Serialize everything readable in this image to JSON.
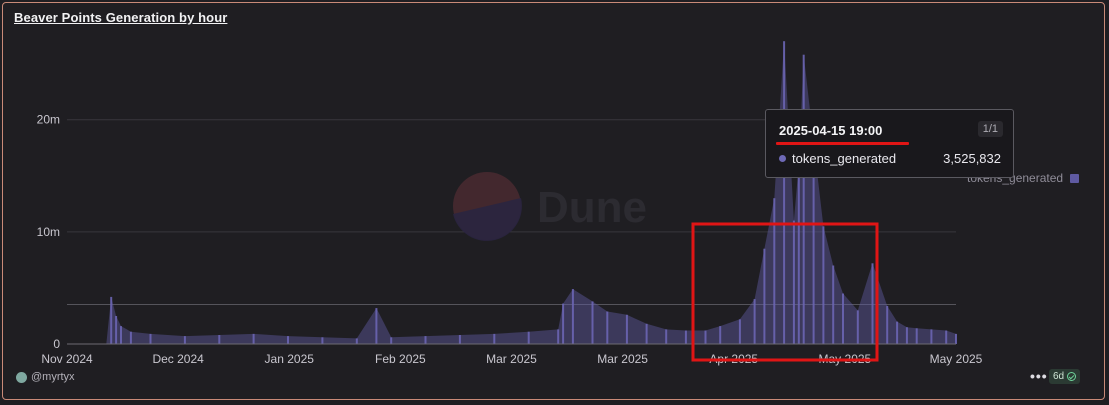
{
  "panel": {
    "title": "Beaver Points Generation by hour",
    "author": "@myrtyx",
    "more_label": "•••",
    "age_label": "6d",
    "watermark": "Dune"
  },
  "tooltip": {
    "date": "2025-04-15 19:00",
    "page": "1/1",
    "series": "tokens_generated",
    "value": "3,525,832"
  },
  "legend": {
    "label": "tokens_generated"
  },
  "colors": {
    "series": "#5f5aa2",
    "highlight_box": "#e01515",
    "background": "#1f1e22"
  },
  "chart_data": {
    "type": "bar",
    "title": "Beaver Points Generation by hour",
    "series_name": "tokens_generated",
    "ylim": [
      0,
      28000000
    ],
    "yticks": [
      {
        "value": 0,
        "label": "0"
      },
      {
        "value": 10000000,
        "label": "10m"
      },
      {
        "value": 20000000,
        "label": "20m"
      }
    ],
    "xticks": [
      "Nov 2024",
      "Dec 2024",
      "Jan 2025",
      "Feb 2025",
      "Mar 2025",
      "Mar 2025",
      "Apr 2025",
      "May 2025",
      "May 2025"
    ],
    "x": [
      "2024-11-20",
      "2024-11-25",
      "2024-11-28",
      "2024-11-29",
      "2024-11-30",
      "2024-12-01",
      "2024-12-03",
      "2024-12-07",
      "2024-12-14",
      "2024-12-21",
      "2024-12-28",
      "2025-01-04",
      "2025-01-11",
      "2025-01-18",
      "2025-01-22",
      "2025-01-25",
      "2025-02-01",
      "2025-02-08",
      "2025-02-15",
      "2025-02-22",
      "2025-02-28",
      "2025-03-01",
      "2025-03-03",
      "2025-03-07",
      "2025-03-10",
      "2025-03-14",
      "2025-03-18",
      "2025-03-22",
      "2025-03-26",
      "2025-03-30",
      "2025-04-02",
      "2025-04-06",
      "2025-04-09",
      "2025-04-11",
      "2025-04-13",
      "2025-04-15",
      "2025-04-17",
      "2025-04-18",
      "2025-04-19",
      "2025-04-21",
      "2025-04-23",
      "2025-04-25",
      "2025-04-27",
      "2025-04-30",
      "2025-05-03",
      "2025-05-06",
      "2025-05-08",
      "2025-05-10",
      "2025-05-12",
      "2025-05-15",
      "2025-05-18",
      "2025-05-20"
    ],
    "values": [
      0,
      0,
      0,
      4200000,
      2500000,
      1600000,
      1100000,
      900000,
      700000,
      800000,
      900000,
      700000,
      600000,
      500000,
      3200000,
      600000,
      700000,
      800000,
      900000,
      1100000,
      1300000,
      3600000,
      4900000,
      3800000,
      2900000,
      2600000,
      1800000,
      1300000,
      1200000,
      1200000,
      1600000,
      2200000,
      4000000,
      8500000,
      13000000,
      27000000,
      11000000,
      16000000,
      25800000,
      18000000,
      10500000,
      7000000,
      4500000,
      3000000,
      7200000,
      3400000,
      2000000,
      1500000,
      1400000,
      1300000,
      1200000,
      900000
    ],
    "reference_line": 3525832
  }
}
